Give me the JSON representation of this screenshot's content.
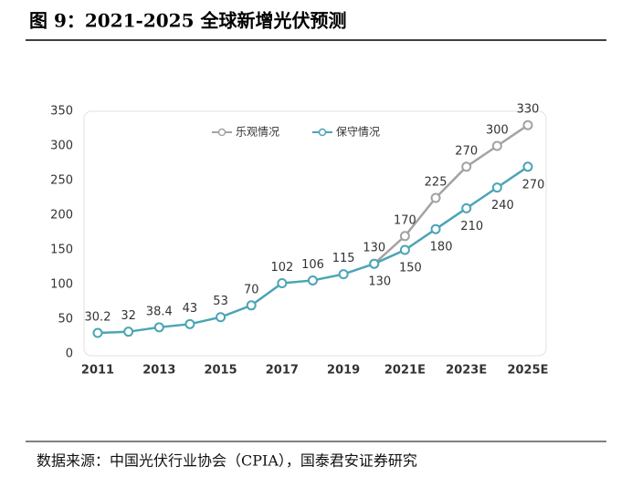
{
  "title": "图 9：2021-2025 全球新增光伏预测",
  "source": "数据来源：中国光伏行业协会（CPIA），国泰君安证券研究",
  "chart_data": {
    "type": "line",
    "categories": [
      "2011",
      null,
      "2013",
      null,
      "2015",
      null,
      "2017",
      null,
      "2019",
      null,
      "2021E",
      null,
      "2023E",
      null,
      "2025E"
    ],
    "series": [
      {
        "name": "乐观情况",
        "color": "#a3a3a3",
        "values": [
          null,
          null,
          null,
          null,
          null,
          null,
          null,
          null,
          null,
          130,
          170,
          225,
          270,
          300,
          330
        ]
      },
      {
        "name": "保守情况",
        "color": "#4ba5b5",
        "values": [
          30.2,
          32,
          38.4,
          43,
          53,
          70,
          102,
          106,
          115,
          130,
          150,
          180,
          210,
          240,
          270
        ]
      }
    ],
    "ylim": [
      0,
      350
    ],
    "yticks": [
      0,
      50,
      100,
      150,
      200,
      250,
      300,
      350
    ],
    "legend": "top"
  }
}
